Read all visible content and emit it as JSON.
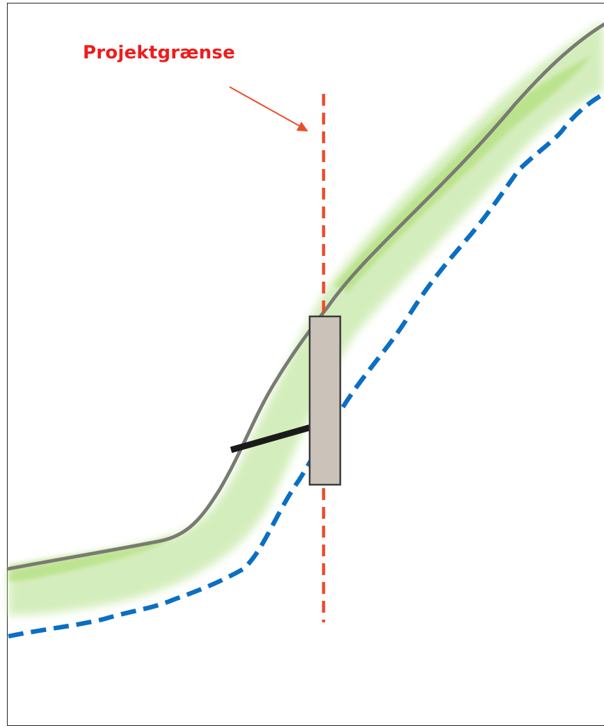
{
  "diagram": {
    "label_text": "Projektgrænse",
    "colors": {
      "label": "#ee1c1c",
      "arrow": "#ee4b2b",
      "boundary_line": "#ee4b2b",
      "coastline": "#7a7a74",
      "vegetation": "#c6e8a6",
      "dashed_line": "#0b6fc2",
      "structure_fill": "#cbc3ba",
      "structure_stroke": "#3a3a3a",
      "bar": "#1a1a1a",
      "frame": "#222222"
    }
  }
}
